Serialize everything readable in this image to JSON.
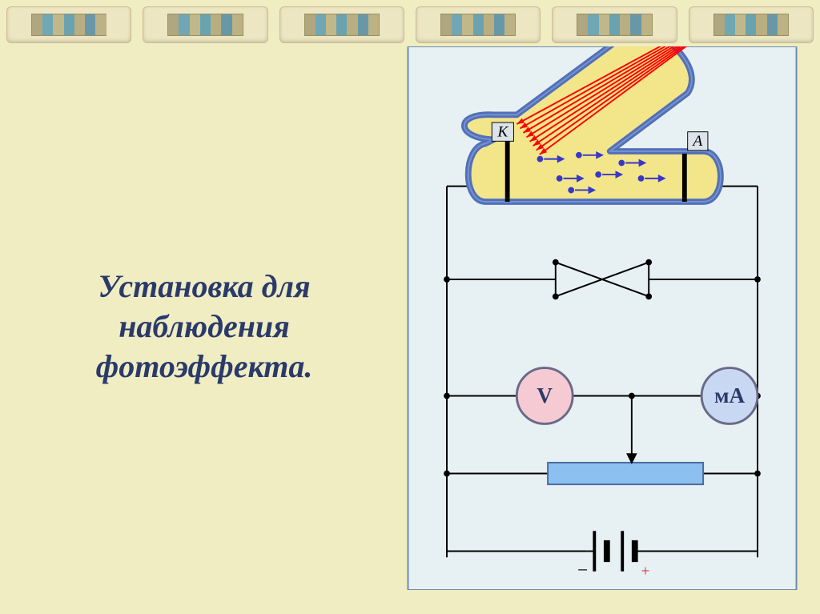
{
  "slide": {
    "background_color": "#f0edc3",
    "title": "Установка для наблюдения фотоэффекта.",
    "title_color": "#2a3a6a"
  },
  "top_tabs": {
    "count": 6,
    "tab_bg": "#ece6c2",
    "tab_border": "#cdbb8e",
    "stripes": [
      "#b0a680",
      "#70a7b5",
      "#c0b88a",
      "#6aa2b0",
      "#b8ae82",
      "#6898a8",
      "#bcb284"
    ]
  },
  "diagram": {
    "bg_color": "#e7f0f2",
    "border_color": "#6a8aa8",
    "tube": {
      "glass_color": "#5270b8",
      "glass_stroke_width": 8,
      "interior_color": "#f3e58a",
      "cathode_label": "K",
      "anode_label": "A",
      "electrode_color": "#000000",
      "light_rays": {
        "color": "#ff0000",
        "count": 8
      },
      "electrons": {
        "color": "#3838c8",
        "count": 7
      }
    },
    "circuit": {
      "wire_color": "#000000",
      "wire_width": 2,
      "node_radius": 4
    },
    "voltmeter": {
      "label": "V",
      "fill": "#f5cad2",
      "stroke": "#6a6a88",
      "text_color": "#2a3a6a",
      "radius": 36
    },
    "ammeter": {
      "label": "мА",
      "fill": "#c8d8f2",
      "stroke": "#6a6a88",
      "text_color": "#2a3a6a",
      "radius": 36
    },
    "rheostat": {
      "fill": "#8cc0f0",
      "stroke": "#4a6aa0"
    },
    "battery": {
      "minus_label": "−",
      "plus_label": "+",
      "minus_color": "#000000",
      "plus_color": "#cc3030"
    }
  }
}
